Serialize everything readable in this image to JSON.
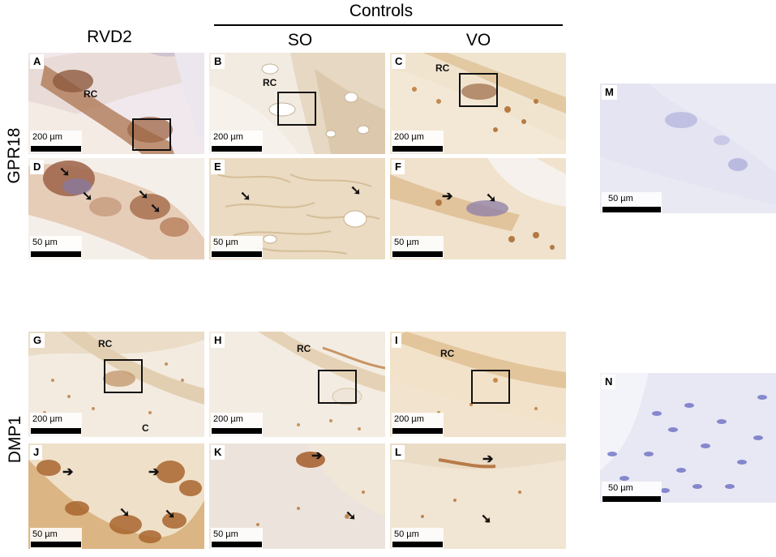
{
  "header": {
    "controls_label": "Controls",
    "col_rvd2": "RVD2",
    "col_so": "SO",
    "col_vo": "VO",
    "row_gpr18": "GPR18",
    "row_dmp1": "DMP1"
  },
  "panels": {
    "A": {
      "label": "A",
      "rc": "RC",
      "scale": "200 µm"
    },
    "B": {
      "label": "B",
      "rc": "RC",
      "scale": "200 µm"
    },
    "C": {
      "label": "C",
      "rc": "RC",
      "scale": "200 µm"
    },
    "D": {
      "label": "D",
      "scale": "50 µm"
    },
    "E": {
      "label": "E",
      "scale": "50 µm"
    },
    "F": {
      "label": "F",
      "scale": "50 µm"
    },
    "G": {
      "label": "G",
      "rc": "RC",
      "c": "C",
      "scale": "200 µm"
    },
    "H": {
      "label": "H",
      "rc": "RC",
      "scale": "200 µm"
    },
    "I": {
      "label": "I",
      "rc": "RC",
      "scale": "200 µm"
    },
    "J": {
      "label": "J",
      "scale": "50 µm"
    },
    "K": {
      "label": "K",
      "scale": "50 µm"
    },
    "L": {
      "label": "L",
      "scale": "50 µm"
    },
    "M": {
      "label": "M",
      "scale": "50 µm"
    },
    "N": {
      "label": "N",
      "scale": "50 µm"
    }
  },
  "colors": {
    "dab_brown": "#a0622e",
    "tissue_beige": "#efe3d3",
    "hematoxylin_blue": "#6d70c4",
    "negative_control_bg": "#e3e3f2"
  }
}
